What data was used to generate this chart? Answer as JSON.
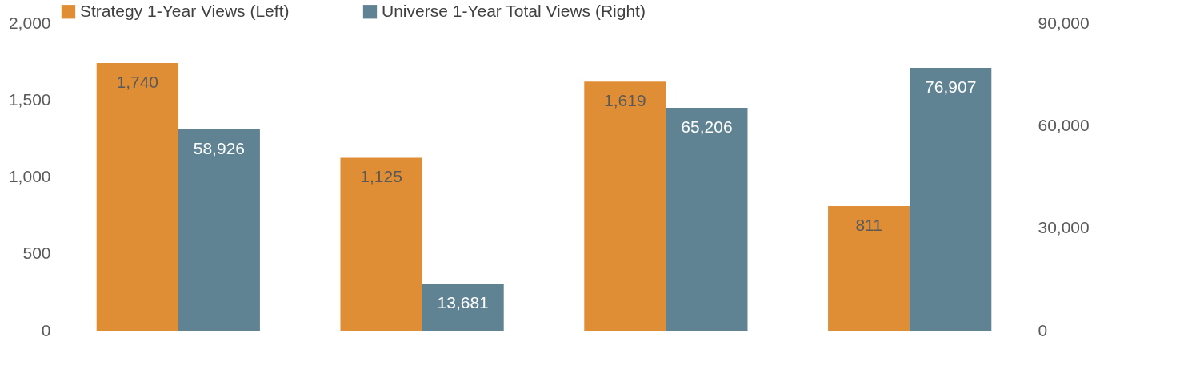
{
  "chart_data": {
    "type": "bar",
    "categories": [
      null,
      null,
      null,
      null
    ],
    "series": [
      {
        "name": "Strategy 1-Year Views (Left)",
        "color": "#e08e35",
        "values": [
          1740,
          1125,
          1619,
          811
        ],
        "value_labels": [
          "1,740",
          "1,125",
          "1,619",
          "811"
        ]
      },
      {
        "name": "Universe 1-Year Total Views (Right)",
        "color": "#5f8393",
        "values": [
          58926,
          13681,
          65206,
          76907
        ],
        "value_labels": [
          "58,926",
          "13,681",
          "65,206",
          "76,907"
        ],
        "axis": "y2"
      }
    ],
    "ylim": [
      0,
      2000
    ],
    "yticks": [
      0,
      500,
      {
        "value": 1000,
        "label": "1,000"
      },
      {
        "value": 1500,
        "label": "1,500"
      },
      {
        "value": 2000,
        "label": "2,000"
      }
    ],
    "y2lim": [
      0,
      90000
    ],
    "y2ticks": [
      0,
      {
        "value": 30000,
        "label": "30,000"
      },
      {
        "value": 60000,
        "label": "60,000"
      },
      {
        "value": 90000,
        "label": "90,000"
      }
    ],
    "legend": "top"
  }
}
